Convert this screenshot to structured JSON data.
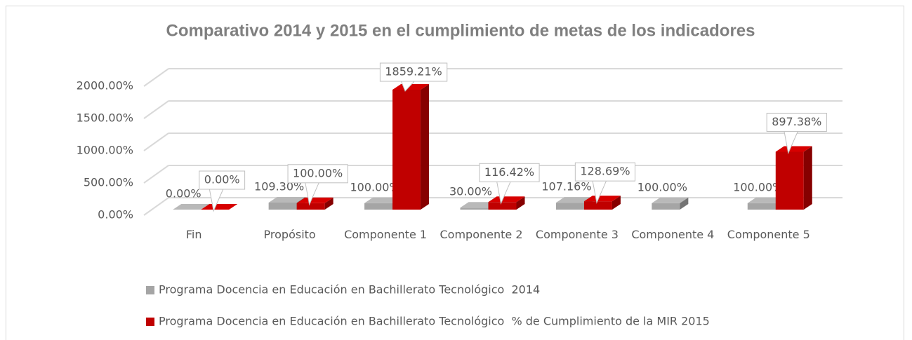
{
  "chart_data": {
    "type": "bar3d",
    "title": "Comparativo 2014 y 2015 en el cumplimiento de metas de los indicadores",
    "categories": [
      "Fin",
      "Propósito",
      "Componente 1",
      "Componente 2",
      "Componente 3",
      "Componente 4",
      "Componente 5"
    ],
    "series": [
      {
        "name": "Programa Docencia en Educación en Bachillerato Tecnológico  2014",
        "color": "#a5a5a5",
        "values": [
          0,
          109.3,
          100,
          30,
          107.16,
          100,
          100
        ],
        "value_labels": [
          "0.00%",
          "109.30%",
          "100.00%",
          "30.00%",
          "107.16%",
          "100.00%",
          "100.00%"
        ]
      },
      {
        "name": "Programa Docencia en Educación en Bachillerato Tecnológico  % de Cumplimiento de la MIR 2015",
        "color": "#c00000",
        "values": [
          0,
          100,
          1859.21,
          116.42,
          128.69,
          null,
          897.38
        ],
        "value_labels": [
          "0.00%",
          "100.00%",
          "1859.21%",
          "116.42%",
          "128.69%",
          null,
          "897.38%"
        ]
      }
    ],
    "ylim": [
      0,
      2000
    ],
    "yticks": [
      {
        "value": 0,
        "label": "0.00%"
      },
      {
        "value": 500,
        "label": "500.00%"
      },
      {
        "value": 1000,
        "label": "1000.00%"
      },
      {
        "value": 1500,
        "label": "1500.00%"
      },
      {
        "value": 2000,
        "label": "2000.00%"
      }
    ],
    "grid": true
  }
}
